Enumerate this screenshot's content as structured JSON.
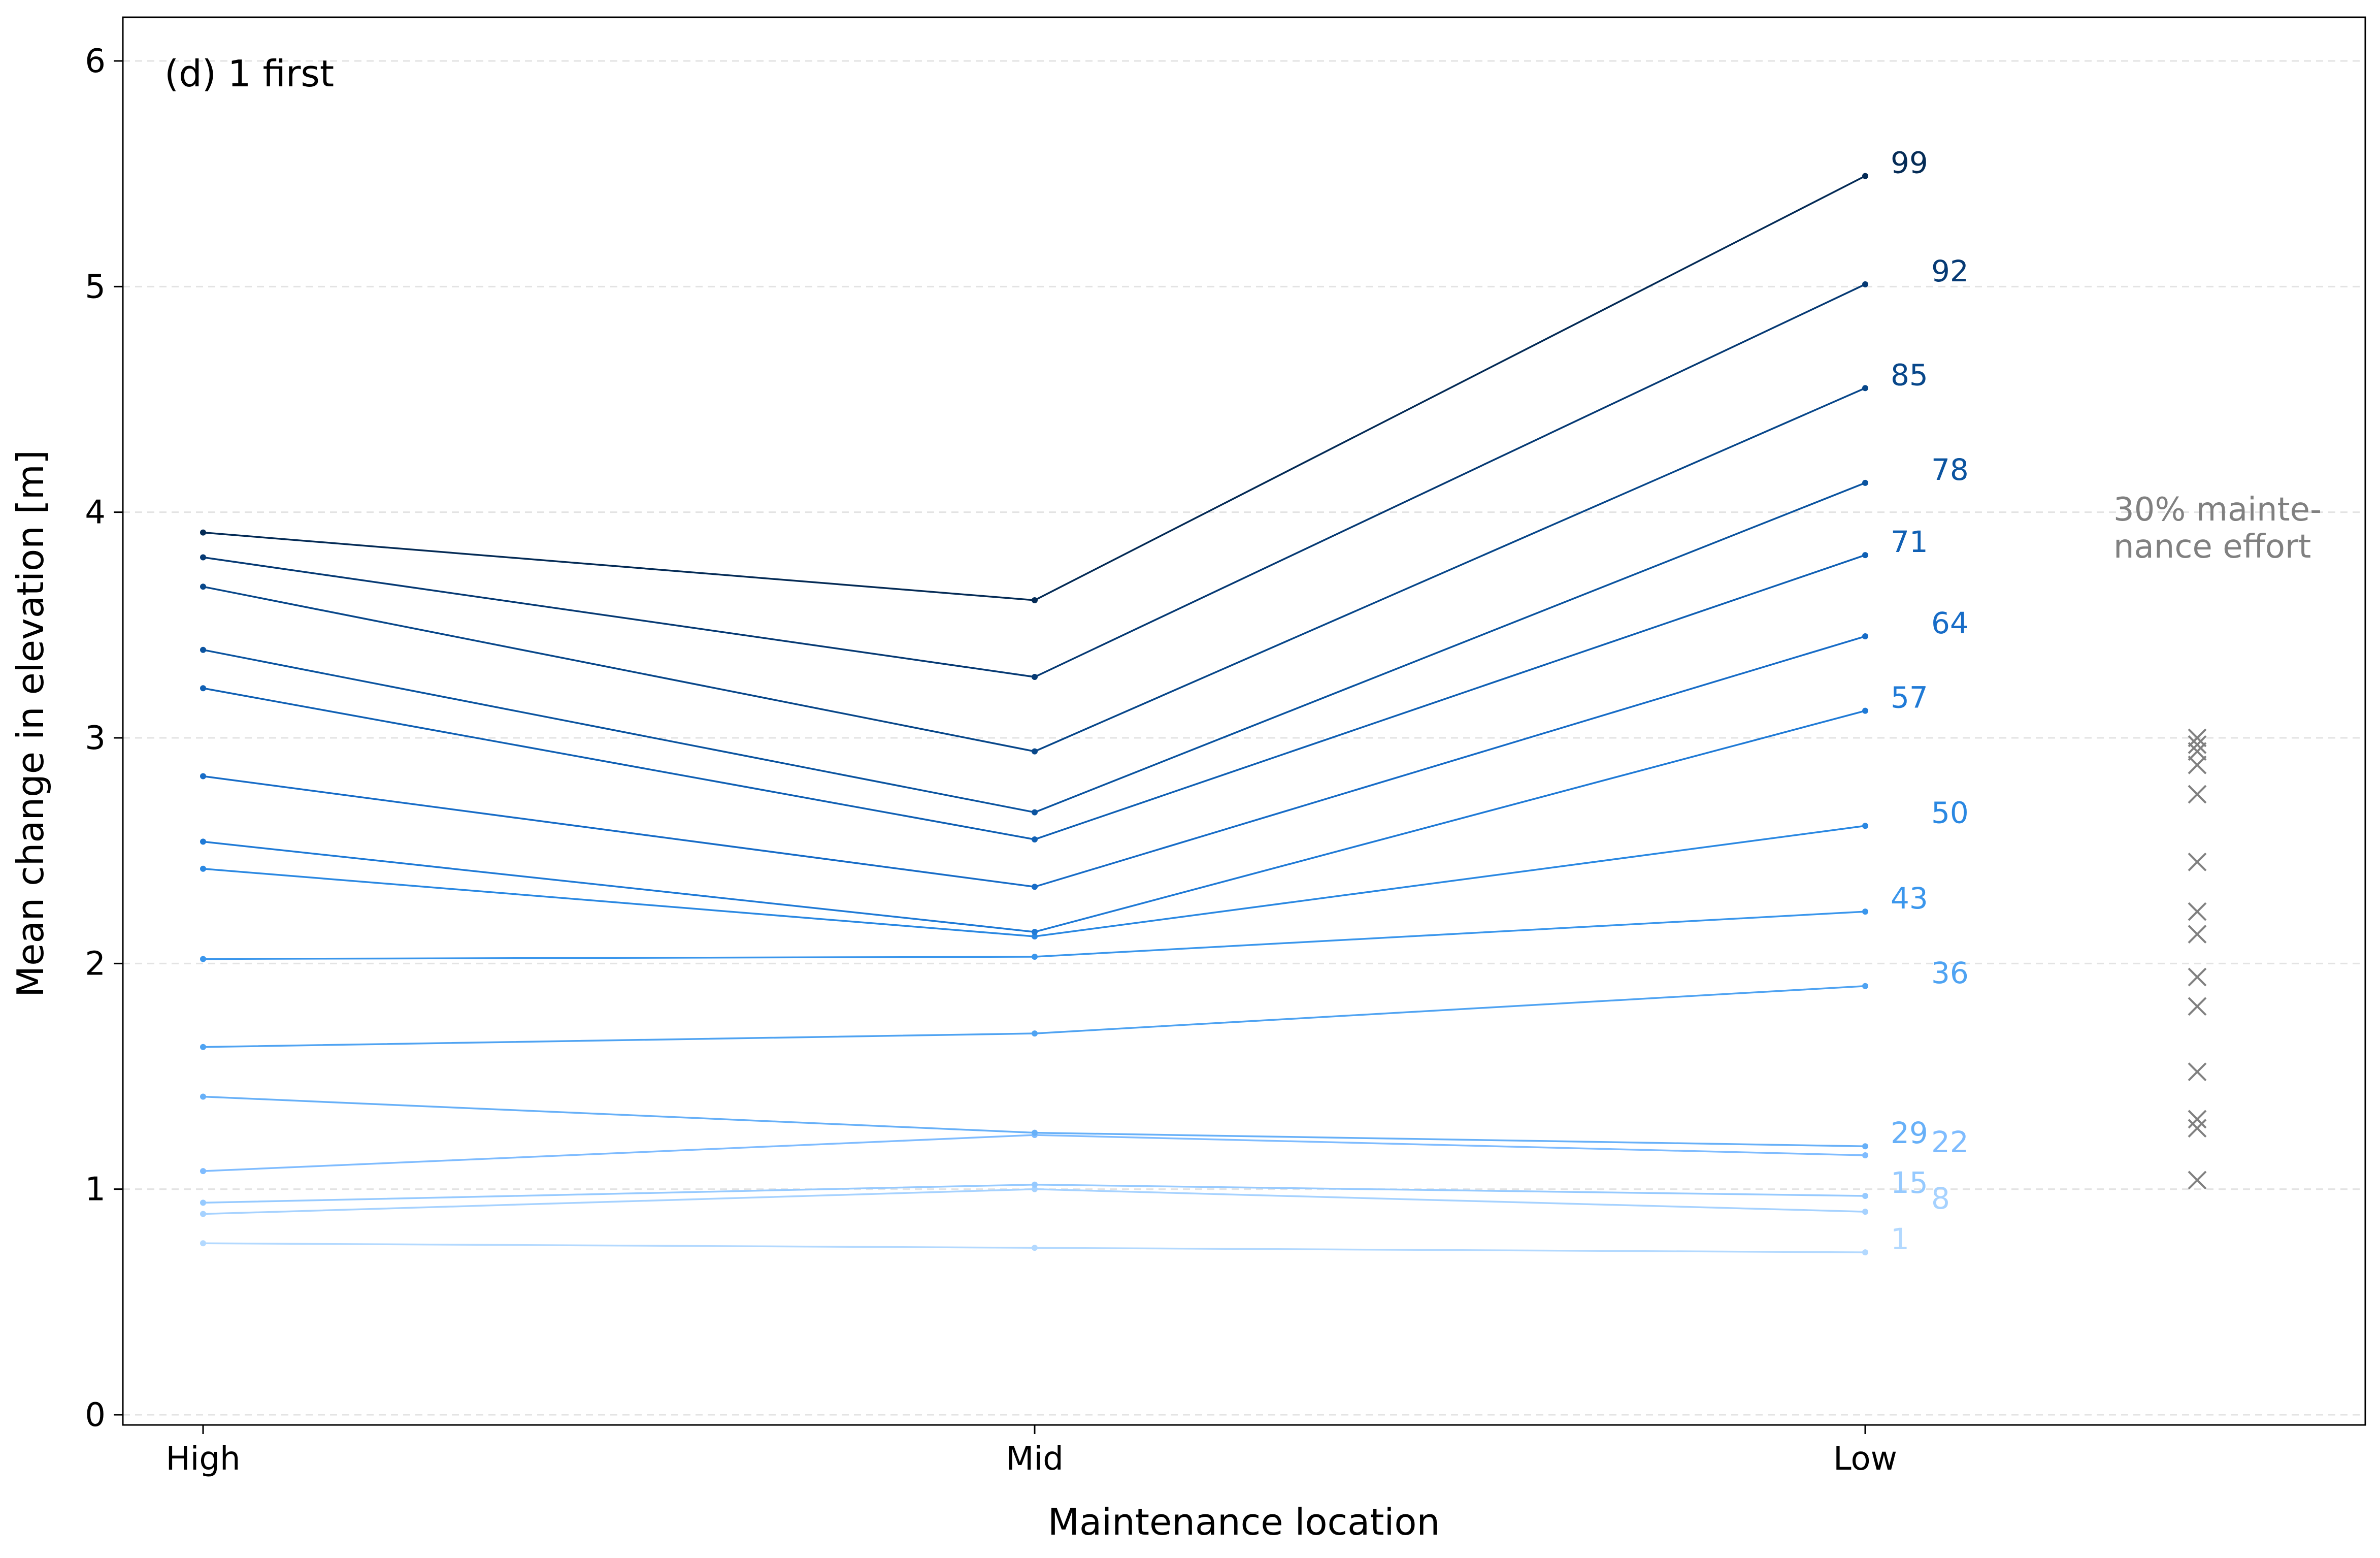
{
  "chart_data": {
    "type": "line",
    "panel_label": "(d) 1 first",
    "xlabel": "Maintenance location",
    "ylabel": "Mean change in elevation [m]",
    "categories": [
      "High",
      "Mid",
      "Low"
    ],
    "yticks": [
      "0",
      "1",
      "2",
      "3",
      "4",
      "5",
      "6"
    ],
    "ylim": [
      0,
      6
    ],
    "grid": "horizontal dashed",
    "series": [
      {
        "name": "1",
        "values": [
          0.76,
          0.74,
          0.72
        ],
        "color": "#b3d9ff"
      },
      {
        "name": "8",
        "values": [
          0.89,
          1.0,
          0.9
        ],
        "color": "#a6d2ff"
      },
      {
        "name": "15",
        "values": [
          0.94,
          1.02,
          0.97
        ],
        "color": "#96caff"
      },
      {
        "name": "22",
        "values": [
          1.08,
          1.24,
          1.15
        ],
        "color": "#7fbcff"
      },
      {
        "name": "29",
        "values": [
          1.41,
          1.25,
          1.19
        ],
        "color": "#67b0f8"
      },
      {
        "name": "36",
        "values": [
          1.63,
          1.69,
          1.9
        ],
        "color": "#4fa3f2"
      },
      {
        "name": "43",
        "values": [
          2.02,
          2.03,
          2.23
        ],
        "color": "#3a96ec"
      },
      {
        "name": "50",
        "values": [
          2.42,
          2.12,
          2.61
        ],
        "color": "#2a88e2"
      },
      {
        "name": "57",
        "values": [
          2.54,
          2.14,
          3.12
        ],
        "color": "#1f7ad6"
      },
      {
        "name": "64",
        "values": [
          2.83,
          2.34,
          3.45
        ],
        "color": "#176cc7"
      },
      {
        "name": "71",
        "values": [
          3.22,
          2.55,
          3.81
        ],
        "color": "#1060b4"
      },
      {
        "name": "78",
        "values": [
          3.39,
          2.67,
          4.13
        ],
        "color": "#0b54a0"
      },
      {
        "name": "85",
        "values": [
          3.67,
          2.94,
          4.55
        ],
        "color": "#08478a"
      },
      {
        "name": "92",
        "values": [
          3.8,
          3.27,
          5.01
        ],
        "color": "#063a74"
      },
      {
        "name": "99",
        "values": [
          3.91,
          3.61,
          5.49
        ],
        "color": "#042b56"
      }
    ],
    "annotation": {
      "text_line1": "30% mainte-",
      "text_line2": "nance effort",
      "markers": [
        3.0,
        2.97,
        2.94,
        2.88,
        2.75,
        2.45,
        2.23,
        2.13,
        1.94,
        1.81,
        1.52,
        1.31,
        1.27,
        1.04
      ],
      "color": "#808080"
    }
  }
}
